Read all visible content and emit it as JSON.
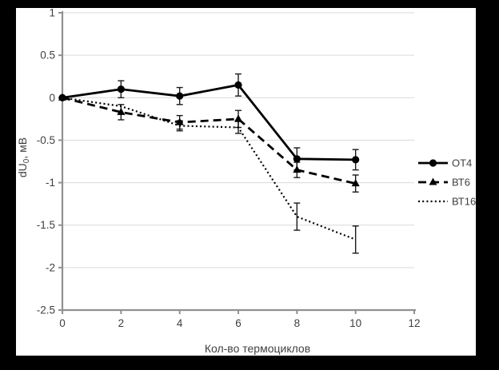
{
  "colors": {
    "page_background": "#000000",
    "chart_background": "#ffffff",
    "series_color": "#000000",
    "grid_color": "#d9d9d9",
    "axis_color": "#919191",
    "tick_label_color": "#404040",
    "error_bar_color": "#1a1a1a"
  },
  "chart_data": {
    "type": "line",
    "title": "",
    "xlabel": "Кол-во термоциклов",
    "ylabel": "dU0, мВ",
    "ylabel_parts": {
      "pre": "dU",
      "sub": "0",
      "post": ", мВ"
    },
    "xlim": [
      0,
      12
    ],
    "ylim": [
      -2.5,
      1
    ],
    "grid": "horizontal",
    "legend_position": "right",
    "xticks": [
      {
        "value": 0,
        "label": "0"
      },
      {
        "value": 2,
        "label": "2"
      },
      {
        "value": 4,
        "label": "4"
      },
      {
        "value": 6,
        "label": "6"
      },
      {
        "value": 8,
        "label": "8"
      },
      {
        "value": 10,
        "label": "10"
      },
      {
        "value": 12,
        "label": "12"
      }
    ],
    "yticks": [
      {
        "value": 1,
        "label": "1"
      },
      {
        "value": 0.5,
        "label": "0.5"
      },
      {
        "value": 0,
        "label": "0"
      },
      {
        "value": -0.5,
        "label": "-0.5"
      },
      {
        "value": -1,
        "label": "-1"
      },
      {
        "value": -1.5,
        "label": "-1.5"
      },
      {
        "value": -2,
        "label": "-2"
      },
      {
        "value": -2.5,
        "label": "-2.5"
      }
    ],
    "x": [
      0,
      2,
      4,
      6,
      8,
      10
    ],
    "series": [
      {
        "key": "ot4",
        "name": "ОТ4",
        "line_style": "solid",
        "marker": "circle",
        "values": [
          0,
          0.1,
          0.02,
          0.15,
          -0.72,
          -0.73
        ],
        "errors": [
          0,
          0.1,
          0.1,
          0.13,
          0.13,
          0.12
        ]
      },
      {
        "key": "vt6",
        "name": "ВТ6",
        "line_style": "dashed",
        "marker": "triangle",
        "values": [
          0,
          -0.17,
          -0.29,
          -0.25,
          -0.85,
          -1.01
        ],
        "errors": [
          0,
          0.09,
          0.08,
          0.1,
          0.09,
          0.1
        ]
      },
      {
        "key": "vt16",
        "name": "ВТ16",
        "line_style": "dotted",
        "marker": "none",
        "values": [
          0,
          -0.1,
          -0.33,
          -0.35,
          -1.4,
          -1.67
        ],
        "errors": [
          0,
          0,
          0.06,
          0.07,
          0.16,
          0.16
        ]
      }
    ]
  }
}
